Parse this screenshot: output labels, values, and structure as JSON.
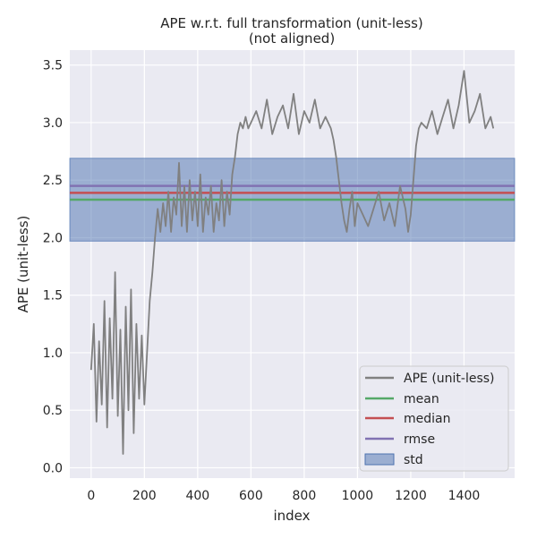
{
  "chart_data": {
    "type": "line",
    "title": "APE w.r.t. full transformation (unit-less)",
    "subtitle": "(not aligned)",
    "xlabel": "index",
    "ylabel": "APE (unit-less)",
    "xlim": [
      -80,
      1590
    ],
    "ylim": [
      -0.09,
      3.63
    ],
    "xticks": [
      0,
      200,
      400,
      600,
      800,
      1000,
      1200,
      1400
    ],
    "yticks": [
      0.0,
      0.5,
      1.0,
      1.5,
      2.0,
      2.5,
      3.0,
      3.5
    ],
    "xtick_labels": [
      "0",
      "200",
      "400",
      "600",
      "800",
      "1000",
      "1200",
      "1400"
    ],
    "ytick_labels": [
      "0.0",
      "0.5",
      "1.0",
      "1.5",
      "2.0",
      "2.5",
      "3.0",
      "3.5"
    ],
    "grid": true,
    "legend_position": "lower-right",
    "background": "#eaeaf2",
    "series": [
      {
        "name": "APE (unit-less)",
        "kind": "line",
        "color": "#808080",
        "x": [
          0,
          10,
          20,
          30,
          40,
          50,
          60,
          70,
          80,
          90,
          100,
          110,
          120,
          130,
          140,
          150,
          160,
          170,
          180,
          190,
          200,
          210,
          220,
          230,
          240,
          250,
          260,
          270,
          280,
          290,
          300,
          310,
          320,
          330,
          340,
          350,
          360,
          370,
          380,
          390,
          400,
          410,
          420,
          430,
          440,
          450,
          460,
          470,
          480,
          490,
          500,
          510,
          520,
          530,
          540,
          550,
          560,
          570,
          580,
          590,
          600,
          620,
          640,
          660,
          680,
          700,
          720,
          740,
          760,
          780,
          800,
          820,
          840,
          860,
          880,
          900,
          910,
          920,
          930,
          940,
          950,
          960,
          970,
          980,
          990,
          1000,
          1020,
          1040,
          1060,
          1080,
          1100,
          1120,
          1140,
          1160,
          1180,
          1190,
          1200,
          1210,
          1220,
          1230,
          1240,
          1260,
          1280,
          1300,
          1320,
          1340,
          1360,
          1380,
          1400,
          1420,
          1440,
          1460,
          1480,
          1500,
          1510
        ],
        "y": [
          0.85,
          1.25,
          0.4,
          1.1,
          0.55,
          1.45,
          0.35,
          1.3,
          0.6,
          1.7,
          0.45,
          1.2,
          0.12,
          1.4,
          0.5,
          1.55,
          0.3,
          1.25,
          0.6,
          1.15,
          0.55,
          1.0,
          1.45,
          1.7,
          2.0,
          2.25,
          2.05,
          2.3,
          2.1,
          2.4,
          2.05,
          2.35,
          2.2,
          2.65,
          2.1,
          2.45,
          2.05,
          2.5,
          2.15,
          2.4,
          2.1,
          2.55,
          2.05,
          2.35,
          2.2,
          2.45,
          2.05,
          2.3,
          2.15,
          2.5,
          2.1,
          2.4,
          2.2,
          2.55,
          2.7,
          2.9,
          3.0,
          2.95,
          3.05,
          2.95,
          3.0,
          3.1,
          2.95,
          3.2,
          2.9,
          3.05,
          3.15,
          2.95,
          3.25,
          2.9,
          3.1,
          3.0,
          3.2,
          2.95,
          3.05,
          2.95,
          2.85,
          2.7,
          2.5,
          2.3,
          2.15,
          2.05,
          2.25,
          2.4,
          2.1,
          2.3,
          2.2,
          2.1,
          2.25,
          2.4,
          2.15,
          2.3,
          2.1,
          2.45,
          2.25,
          2.05,
          2.2,
          2.5,
          2.8,
          2.95,
          3.0,
          2.95,
          3.1,
          2.9,
          3.05,
          3.2,
          2.95,
          3.15,
          3.45,
          3.0,
          3.1,
          3.25,
          2.95,
          3.05,
          2.95
        ]
      },
      {
        "name": "mean",
        "kind": "hline",
        "color": "#55a868",
        "value": 2.33
      },
      {
        "name": "median",
        "kind": "hline",
        "color": "#c44e52",
        "value": 2.39
      },
      {
        "name": "rmse",
        "kind": "hline",
        "color": "#8172b2",
        "value": 2.45
      },
      {
        "name": "std",
        "kind": "band",
        "color": "#4c72b0",
        "range": [
          1.97,
          2.69
        ]
      }
    ]
  }
}
